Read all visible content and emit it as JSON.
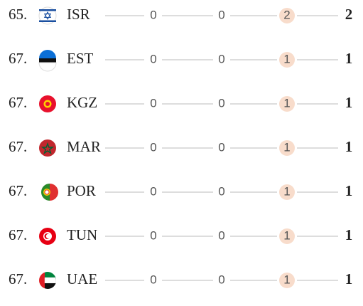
{
  "table": {
    "rows": [
      {
        "rank": "65.",
        "country": "ISR",
        "gold": 0,
        "silver": 0,
        "bronze": 2,
        "total": 2
      },
      {
        "rank": "67.",
        "country": "EST",
        "gold": 0,
        "silver": 0,
        "bronze": 1,
        "total": 1
      },
      {
        "rank": "67.",
        "country": "KGZ",
        "gold": 0,
        "silver": 0,
        "bronze": 1,
        "total": 1
      },
      {
        "rank": "67.",
        "country": "MAR",
        "gold": 0,
        "silver": 0,
        "bronze": 1,
        "total": 1
      },
      {
        "rank": "67.",
        "country": "POR",
        "gold": 0,
        "silver": 0,
        "bronze": 1,
        "total": 1
      },
      {
        "rank": "67.",
        "country": "TUN",
        "gold": 0,
        "silver": 0,
        "bronze": 1,
        "total": 1
      },
      {
        "rank": "67.",
        "country": "UAE",
        "gold": 0,
        "silver": 0,
        "bronze": 1,
        "total": 1
      }
    ]
  }
}
